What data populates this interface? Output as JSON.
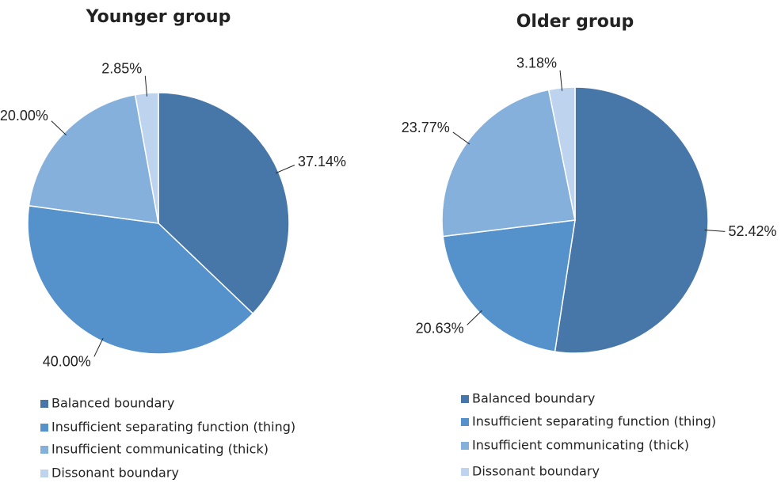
{
  "chart_data": [
    {
      "type": "pie",
      "title": "Younger group",
      "categories": [
        "Balanced boundary",
        "Insufficient separating function (thing)",
        "Insufficient communicating (thick)",
        "Dissonant boundary"
      ],
      "values": [
        37.14,
        40.0,
        20.0,
        2.85
      ],
      "value_labels": [
        "37.14%",
        "40.00%",
        "20.00%",
        "2.85%"
      ],
      "colors": [
        "#4677a8",
        "#5592cc",
        "#86b0dc",
        "#bdd3ee"
      ]
    },
    {
      "type": "pie",
      "title": "Older group",
      "categories": [
        "Balanced boundary",
        "Insufficient separating function (thing)",
        "Insufficient communicating (thick)",
        "Dissonant boundary"
      ],
      "values": [
        52.42,
        20.63,
        23.77,
        3.18
      ],
      "value_labels": [
        "52.42%",
        "20.63%",
        "23.77%",
        "3.18%"
      ],
      "colors": [
        "#4677a8",
        "#5592cc",
        "#86b0dc",
        "#bdd3ee"
      ]
    }
  ]
}
